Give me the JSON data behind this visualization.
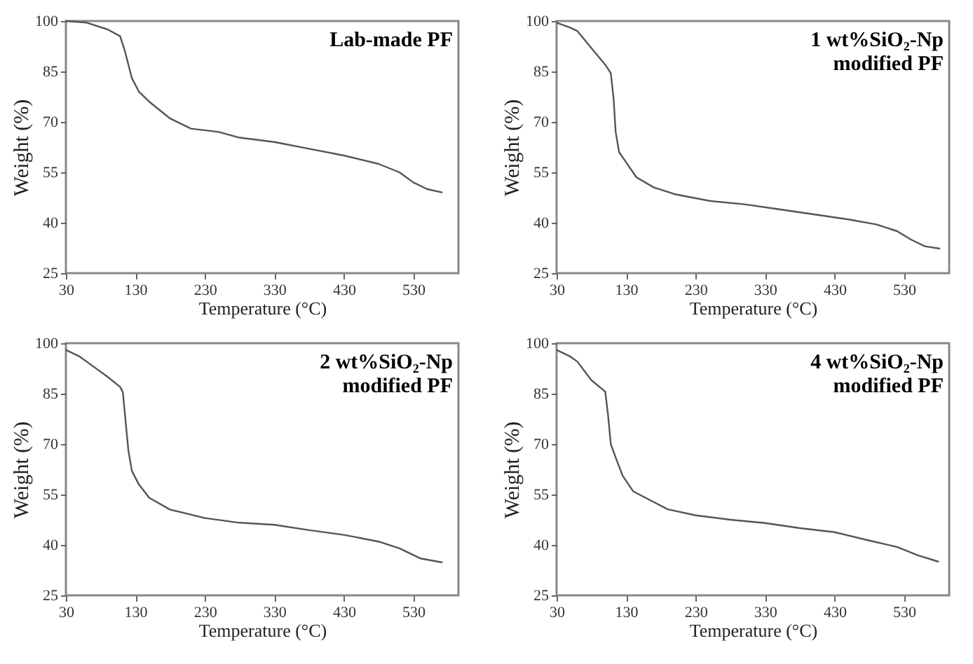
{
  "chart_data": [
    {
      "type": "line",
      "title": "Lab-made PF",
      "xlabel": "Temperature (°C)",
      "ylabel": "Weight (%)",
      "xlim": [
        30,
        595
      ],
      "ylim": [
        25,
        100
      ],
      "xticks": [
        30,
        130,
        230,
        330,
        430,
        530
      ],
      "yticks": [
        25,
        40,
        55,
        70,
        85,
        100
      ],
      "series": [
        {
          "color": "#555555",
          "x": [
            30,
            60,
            90,
            108,
            115,
            125,
            135,
            150,
            180,
            210,
            250,
            280,
            330,
            380,
            430,
            480,
            510,
            530,
            550,
            572
          ],
          "values": [
            100,
            99.5,
            97.5,
            95.5,
            91,
            83,
            79,
            76,
            71,
            68,
            67,
            65.3,
            64,
            62,
            60,
            57.5,
            55,
            52,
            50,
            49
          ]
        }
      ]
    },
    {
      "type": "line",
      "title": "1 wt%SiO₂-Np modified PF",
      "xlabel": "Temperature (°C)",
      "ylabel": "Weight (%)",
      "xlim": [
        30,
        595
      ],
      "ylim": [
        25,
        100
      ],
      "xticks": [
        30,
        130,
        230,
        330,
        430,
        530
      ],
      "yticks": [
        25,
        40,
        55,
        70,
        85,
        100
      ],
      "series": [
        {
          "color": "#555555",
          "x": [
            30,
            50,
            60,
            80,
            100,
            108,
            112,
            115,
            120,
            130,
            145,
            170,
            200,
            250,
            300,
            350,
            400,
            450,
            490,
            520,
            540,
            560,
            582
          ],
          "values": [
            99.5,
            98,
            97,
            92,
            87,
            84.5,
            77,
            67,
            61,
            58,
            53.5,
            50.5,
            48.5,
            46.5,
            45.5,
            44,
            42.5,
            41,
            39.5,
            37.5,
            35,
            33,
            32.3
          ]
        }
      ]
    },
    {
      "type": "line",
      "title": "2 wt%SiO₂-Np modified PF",
      "xlabel": "Temperature (°C)",
      "ylabel": "Weight (%)",
      "xlim": [
        30,
        595
      ],
      "ylim": [
        25,
        100
      ],
      "xticks": [
        30,
        130,
        230,
        330,
        430,
        530
      ],
      "yticks": [
        25,
        40,
        55,
        70,
        85,
        100
      ],
      "series": [
        {
          "color": "#555555",
          "x": [
            30,
            50,
            70,
            90,
            108,
            112,
            116,
            120,
            125,
            135,
            150,
            180,
            230,
            280,
            330,
            380,
            430,
            480,
            510,
            540,
            572
          ],
          "values": [
            98,
            96,
            93,
            90,
            87,
            85.4,
            76.6,
            68,
            62,
            58,
            54,
            50.5,
            48,
            46.6,
            46,
            44.4,
            43,
            41,
            39,
            36,
            34.8
          ]
        }
      ]
    },
    {
      "type": "line",
      "title": "4 wt%SiO₂-Np modified PF",
      "xlabel": "Temperature (°C)",
      "ylabel": "Weight (%)",
      "xlim": [
        30,
        595
      ],
      "ylim": [
        25,
        100
      ],
      "xticks": [
        30,
        130,
        230,
        330,
        430,
        530
      ],
      "yticks": [
        25,
        40,
        55,
        70,
        85,
        100
      ],
      "series": [
        {
          "color": "#555555",
          "x": [
            30,
            50,
            60,
            80,
            100,
            104,
            108,
            115,
            125,
            140,
            160,
            190,
            230,
            280,
            330,
            380,
            430,
            480,
            520,
            550,
            580
          ],
          "values": [
            98,
            96,
            94.5,
            89,
            85.6,
            78.7,
            70,
            66,
            60.6,
            56,
            53.8,
            50.6,
            48.8,
            47.5,
            46.5,
            45,
            43.8,
            41.3,
            39.4,
            36.9,
            35
          ]
        }
      ]
    }
  ]
}
